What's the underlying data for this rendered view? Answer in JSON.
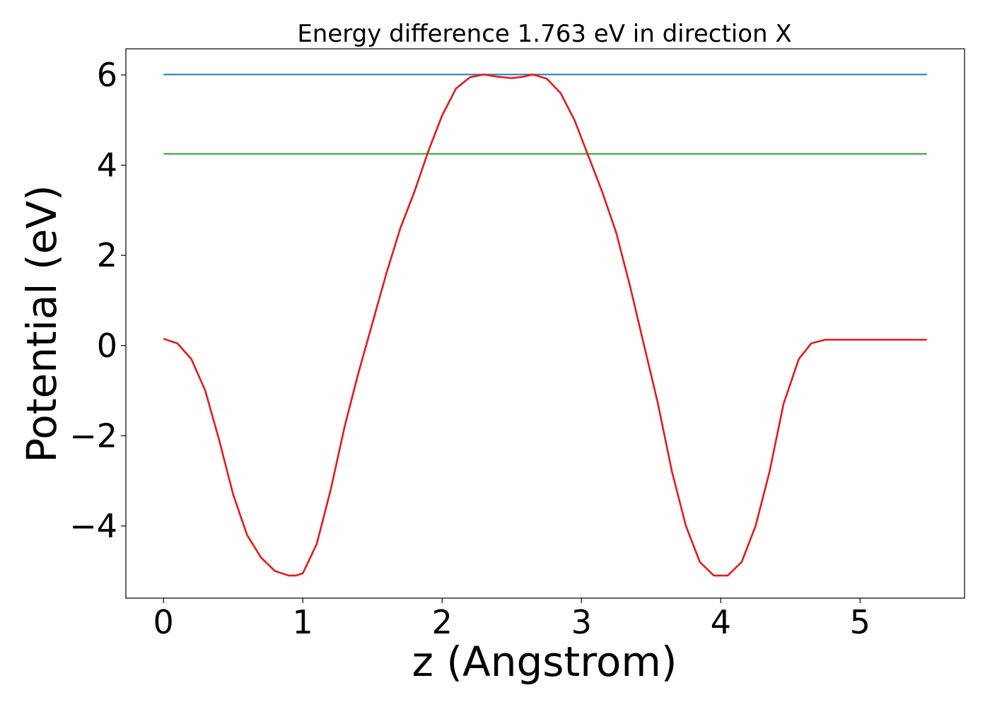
{
  "chart_data": {
    "type": "line",
    "title": "Energy difference 1.763 eV in direction X",
    "xlabel": "z (Angstrom)",
    "ylabel": "Potential (eV)",
    "xlim": [
      -0.27,
      5.75
    ],
    "ylim": [
      -5.6,
      6.58
    ],
    "xticks": [
      0,
      1,
      2,
      3,
      4,
      5
    ],
    "xtick_labels": [
      "0",
      "1",
      "2",
      "3",
      "4",
      "5"
    ],
    "yticks": [
      -4,
      -2,
      0,
      2,
      4,
      6
    ],
    "ytick_labels": [
      "−4",
      "−2",
      "0",
      "2",
      "4",
      "6"
    ],
    "grid": false,
    "legend": "none",
    "series": [
      {
        "color": "#1f77b4",
        "x": [
          0,
          5.48
        ],
        "y": [
          6.01,
          6.01
        ]
      },
      {
        "color": "#2ca02c",
        "x": [
          0,
          5.48
        ],
        "y": [
          4.25,
          4.25
        ]
      },
      {
        "color": "#e31a1c",
        "x": [
          0.0,
          0.1,
          0.2,
          0.3,
          0.4,
          0.5,
          0.6,
          0.7,
          0.8,
          0.9,
          0.95,
          1.0,
          1.1,
          1.2,
          1.3,
          1.4,
          1.5,
          1.6,
          1.7,
          1.8,
          1.9,
          2.0,
          2.1,
          2.2,
          2.3,
          2.4,
          2.5,
          2.58,
          2.65,
          2.75,
          2.85,
          2.95,
          3.05,
          3.15,
          3.25,
          3.35,
          3.45,
          3.55,
          3.65,
          3.75,
          3.85,
          3.95,
          4.05,
          4.15,
          4.25,
          4.35,
          4.45,
          4.56,
          4.65,
          4.75,
          4.85,
          4.95,
          5.05,
          5.15,
          5.25,
          5.35,
          5.48
        ],
        "y": [
          0.15,
          0.05,
          -0.3,
          -1.0,
          -2.1,
          -3.3,
          -4.2,
          -4.7,
          -5.0,
          -5.1,
          -5.1,
          -5.05,
          -4.4,
          -3.2,
          -1.8,
          -0.6,
          0.5,
          1.6,
          2.6,
          3.4,
          4.3,
          5.1,
          5.7,
          5.95,
          6.01,
          5.96,
          5.93,
          5.96,
          6.01,
          5.92,
          5.6,
          5.0,
          4.2,
          3.4,
          2.5,
          1.3,
          0.0,
          -1.3,
          -2.8,
          -4.0,
          -4.8,
          -5.1,
          -5.1,
          -4.8,
          -4.0,
          -2.8,
          -1.3,
          -0.3,
          0.05,
          0.13,
          0.13,
          0.13,
          0.13,
          0.13,
          0.13,
          0.13,
          0.13
        ]
      }
    ]
  }
}
